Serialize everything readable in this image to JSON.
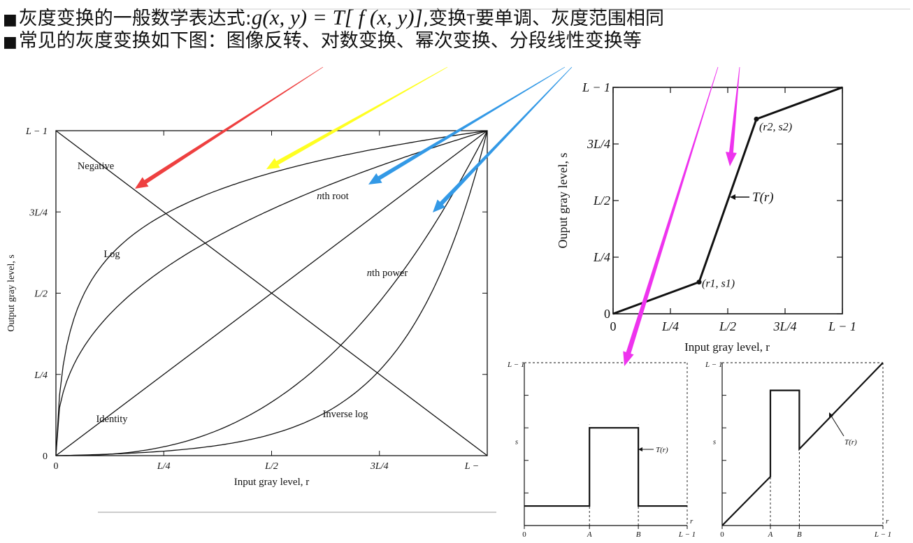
{
  "header": {
    "bullet": "■",
    "line1_prefix": "灰度变换的一般数学表达式:",
    "line1_formula": "g(x, y) = T[ f (x, y)]",
    "line1_sep": ",",
    "line1_mid": "变换",
    "line1_T": "T",
    "line1_suffix": "要单调、灰度范围相同",
    "line2": "常见的灰度变换如下图：图像反转、对数变换、幂次变换、分段线性变换等"
  },
  "colors": {
    "arrow_red": "#ee4040",
    "arrow_yellow": "#ffff22",
    "arrow_blue": "#3399e6",
    "arrow_magenta": "#ee33ee",
    "curve": "#111111",
    "background": "#ffffff"
  },
  "chart_data": [
    {
      "type": "line",
      "xlabel": "Input gray level, r",
      "ylabel": "Output gray level, s",
      "xlim": [
        0,
        1
      ],
      "ylim": [
        0,
        1
      ],
      "x_ticks": [
        "0",
        "L/4",
        "L/2",
        "3L/4",
        "L −"
      ],
      "y_ticks": [
        "0",
        "L/4",
        "L/2",
        "3L/4",
        "L − 1"
      ],
      "series": [
        {
          "name": "Negative",
          "x": [
            0,
            1
          ],
          "y": [
            1,
            0
          ]
        },
        {
          "name": "Identity",
          "x": [
            0,
            1
          ],
          "y": [
            0,
            1
          ]
        },
        {
          "name": "Log",
          "x": [
            0,
            0.02,
            0.05,
            0.1,
            0.25,
            0.5,
            0.75,
            1
          ],
          "y": [
            0,
            0.22,
            0.34,
            0.47,
            0.67,
            0.84,
            0.94,
            1
          ]
        },
        {
          "name": "Inverse log",
          "x": [
            0,
            0.25,
            0.5,
            0.75,
            0.9,
            0.95,
            1
          ],
          "y": [
            0,
            0.04,
            0.11,
            0.25,
            0.49,
            0.64,
            1
          ]
        },
        {
          "name": "nth root",
          "x": [
            0,
            0.05,
            0.25,
            0.5,
            0.75,
            1
          ],
          "y": [
            0,
            0.22,
            0.5,
            0.71,
            0.87,
            1
          ]
        },
        {
          "name": "nth power",
          "x": [
            0,
            0.25,
            0.5,
            0.75,
            0.9,
            1
          ],
          "y": [
            0,
            0.06,
            0.25,
            0.56,
            0.81,
            1
          ]
        }
      ]
    },
    {
      "type": "line",
      "xlabel": "Input gray level, r",
      "ylabel": "Ouput gray level, s",
      "xlim": [
        0,
        1
      ],
      "ylim": [
        0,
        1
      ],
      "x_ticks": [
        "0",
        "L/4",
        "L/2",
        "3L/4",
        "L − 1"
      ],
      "y_ticks": [
        "0",
        "L/4",
        "L/2",
        "3L/4",
        "L − 1"
      ],
      "series": [
        {
          "name": "T(r)",
          "x": [
            0,
            0.375,
            0.625,
            1
          ],
          "y": [
            0,
            0.14,
            0.86,
            1
          ]
        }
      ],
      "annotations": [
        "(r1, s1)",
        "(r2, s2)",
        "T(r)"
      ]
    },
    {
      "type": "line",
      "xlabel": "r",
      "ylabel": "s",
      "xlim": [
        0,
        1
      ],
      "ylim": [
        0,
        1
      ],
      "x_ticks": [
        "0",
        "A",
        "B",
        "L − 1"
      ],
      "y_ticks": [
        "L − 1"
      ],
      "series": [
        {
          "name": "T(r)",
          "x": [
            0,
            0.4,
            0.4,
            0.7,
            0.7,
            1
          ],
          "y": [
            0.12,
            0.12,
            0.6,
            0.6,
            0.12,
            0.12
          ]
        }
      ],
      "annotations": [
        "T(r)"
      ]
    },
    {
      "type": "line",
      "xlabel": "r",
      "ylabel": "s",
      "xlim": [
        0,
        1
      ],
      "ylim": [
        0,
        1
      ],
      "x_ticks": [
        "0",
        "A",
        "B",
        "L − 1"
      ],
      "y_ticks": [
        "L − 1"
      ],
      "series": [
        {
          "name": "T(r)",
          "x": [
            0,
            0.3,
            0.3,
            0.48,
            0.48,
            1
          ],
          "y": [
            0,
            0.3,
            0.83,
            0.83,
            0.47,
            1
          ]
        }
      ],
      "annotations": [
        "T(r)"
      ]
    }
  ]
}
